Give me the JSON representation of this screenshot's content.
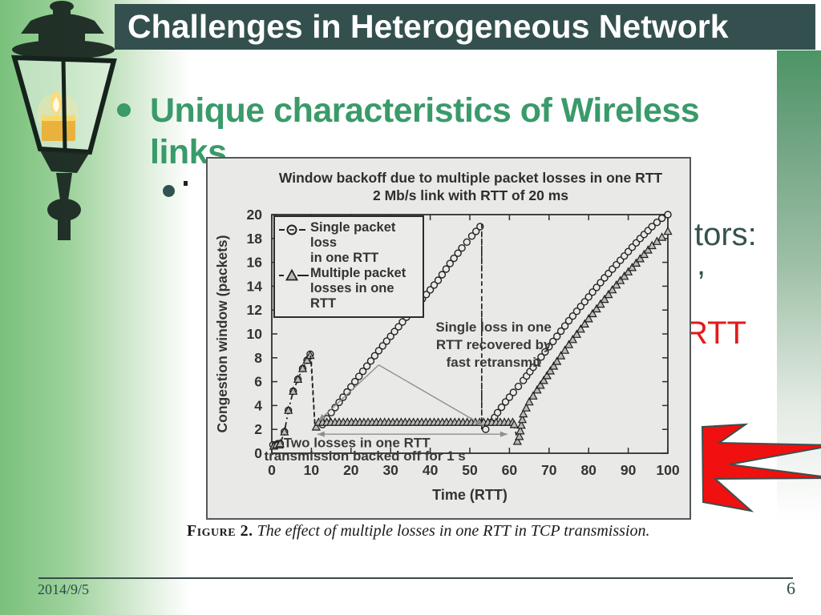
{
  "slide": {
    "title": "Challenges in Heterogeneous Network",
    "bullet_char": "•",
    "main_bullet": "Unique characteristics of Wireless links",
    "fragments": {
      "f1": "tors:",
      "f2": ",",
      "f3": "RTT"
    },
    "caption": {
      "label": "Figure 2.",
      "text": "The effect of multiple losses in one RTT in TCP transmission."
    },
    "footer": {
      "date": "2014/9/5",
      "page": "6"
    },
    "colors": {
      "header_bg": "#33504e",
      "title_text": "#ffffff",
      "heading_green": "#3a9a6a",
      "teal_text": "#35524e",
      "red_text": "#e21a1a",
      "chart_bg": "#e9eae8",
      "band_green": "#79c17b",
      "strip_green": "#4c9465",
      "starburst_red": "#f01010",
      "footer_text": "#2c4b47"
    }
  },
  "chart_data": {
    "type": "line",
    "title": "Window backoff due to multiple packet losses in one RTT",
    "subtitle": "2 Mb/s link with RTT of 20 ms",
    "xlabel": "Time (RTT)",
    "ylabel": "Congestion window (packets)",
    "xlim": [
      0,
      100
    ],
    "ylim": [
      0,
      20
    ],
    "xticks": [
      0,
      10,
      20,
      30,
      40,
      50,
      60,
      70,
      80,
      90,
      100
    ],
    "yticks": [
      0,
      2,
      4,
      6,
      8,
      10,
      12,
      14,
      16,
      18,
      20
    ],
    "grid": false,
    "legend_position": "top-left",
    "series": [
      {
        "name": "Single packet loss in one RTT",
        "marker": "circle",
        "label_lines": [
          "Single packet loss",
          "in one RTT"
        ],
        "segments": [
          {
            "line": "none",
            "points": [
              [
                0.3,
                0.7
              ],
              [
                0.9,
                0.7
              ],
              [
                1.5,
                0.8
              ],
              [
                2.1,
                0.8
              ]
            ]
          },
          {
            "line": "dashdot",
            "points": [
              [
                2.1,
                0.8
              ],
              [
                3.2,
                1.8
              ],
              [
                4.2,
                3.6
              ],
              [
                5.4,
                5.2
              ],
              [
                6.6,
                6.2
              ],
              [
                7.8,
                7.1
              ],
              [
                8.9,
                7.8
              ],
              [
                9.7,
                8.3
              ]
            ]
          },
          {
            "line": "dashed",
            "markers": false,
            "points": [
              [
                9.9,
                8.3
              ],
              [
                10.9,
                2.4
              ]
            ]
          },
          {
            "line": "none",
            "density": "dense",
            "points": [
              [
                12.8,
                2.4
              ],
              [
                15,
                3.4
              ],
              [
                18,
                4.7
              ],
              [
                21,
                6.0
              ],
              [
                24,
                7.3
              ],
              [
                27,
                8.6
              ],
              [
                30,
                9.8
              ],
              [
                33,
                11.0
              ],
              [
                36,
                12.2
              ],
              [
                39,
                13.3
              ],
              [
                42,
                14.5
              ],
              [
                45,
                15.9
              ],
              [
                48,
                17.2
              ],
              [
                50.5,
                18.2
              ],
              [
                52.6,
                19.0
              ]
            ]
          },
          {
            "line": "dashed",
            "markers": false,
            "points": [
              [
                53,
                19.2
              ],
              [
                53,
                2.0
              ]
            ]
          },
          {
            "line": "none",
            "density": "dense",
            "points": [
              [
                54,
                2.0
              ],
              [
                55.5,
                2.6
              ],
              [
                57,
                3.4
              ],
              [
                59,
                4.3
              ],
              [
                61,
                5.1
              ],
              [
                63.5,
                6.1
              ],
              [
                66,
                7.2
              ],
              [
                69,
                8.5
              ],
              [
                72,
                9.8
              ],
              [
                75,
                11.1
              ],
              [
                78,
                12.3
              ],
              [
                81,
                13.5
              ],
              [
                84,
                14.7
              ],
              [
                87,
                15.8
              ],
              [
                90,
                16.9
              ],
              [
                93,
                18.0
              ],
              [
                96,
                19.0
              ],
              [
                98.5,
                19.7
              ],
              [
                100,
                20.0
              ]
            ]
          }
        ]
      },
      {
        "name": "Multiple packet losses in one RTT",
        "marker": "triangle",
        "label_lines": [
          "Multiple packet",
          "losses in one RTT"
        ],
        "segments": [
          {
            "line": "none",
            "points": [
              [
                0.5,
                0.6
              ],
              [
                1.2,
                0.7
              ],
              [
                1.9,
                0.7
              ]
            ]
          },
          {
            "line": "dashdot",
            "points": [
              [
                2.1,
                0.8
              ],
              [
                3.2,
                1.8
              ],
              [
                4.2,
                3.6
              ],
              [
                5.4,
                5.2
              ],
              [
                6.6,
                6.2
              ],
              [
                7.8,
                7.1
              ],
              [
                8.9,
                7.8
              ],
              [
                9.7,
                8.2
              ]
            ]
          },
          {
            "line": "dashed",
            "markers": false,
            "points": [
              [
                9.8,
                8.2
              ],
              [
                10.9,
                2.2
              ]
            ]
          },
          {
            "line": "solid",
            "density": "tight",
            "points": [
              [
                11.2,
                2.2
              ],
              [
                11.8,
                2.6
              ],
              [
                60.8,
                2.6
              ]
            ]
          },
          {
            "line": "dashed",
            "points": [
              [
                61.2,
                2.4
              ],
              [
                62,
                1.0
              ]
            ]
          },
          {
            "line": "none",
            "density": "dense",
            "points": [
              [
                62.5,
                1.4
              ],
              [
                63.5,
                3.3
              ],
              [
                65,
                4.3
              ],
              [
                67,
                5.3
              ],
              [
                69.5,
                6.5
              ],
              [
                72,
                7.7
              ],
              [
                75,
                9.1
              ],
              [
                78,
                10.4
              ],
              [
                81,
                11.7
              ],
              [
                84,
                12.9
              ],
              [
                87,
                14.1
              ],
              [
                90,
                15.2
              ],
              [
                93,
                16.3
              ],
              [
                96,
                17.4
              ],
              [
                98.5,
                18.1
              ],
              [
                100,
                18.6
              ]
            ]
          }
        ]
      }
    ],
    "annotations": {
      "vline": {
        "x": 53,
        "y1": 2.0,
        "y2": 19.3
      },
      "pointer": {
        "apex": [
          27,
          7.4
        ],
        "left_end": [
          11.8,
          2.7
        ],
        "right_end": [
          53.5,
          2.3
        ]
      },
      "span_arrow": {
        "y": 1.6,
        "x1": 11.5,
        "x2": 59.5
      },
      "texts": [
        {
          "lines": [
            "Single loss in one",
            "RTT recovered by",
            "fast retransmit"
          ],
          "x": 56,
          "y": 10.6,
          "step": 22
        },
        {
          "lines": [
            "Two losses in one RTT"
          ],
          "x": 21.5,
          "y": 0.9,
          "step": 20
        },
        {
          "lines": [
            "transmission backed off for 1 s"
          ],
          "x": 23.5,
          "y": -0.2,
          "step": 20
        }
      ]
    }
  }
}
